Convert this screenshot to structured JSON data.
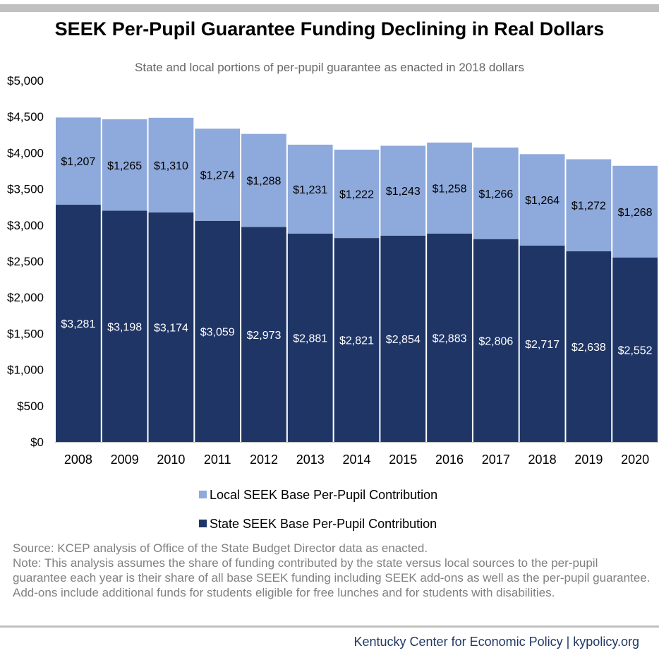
{
  "chart_data": {
    "type": "bar",
    "stacked": true,
    "title": "SEEK Per-Pupil Guarantee Funding Declining in Real Dollars",
    "subtitle": "State and local portions of per-pupil guarantee as enacted in 2018 dollars",
    "categories": [
      "2008",
      "2009",
      "2010",
      "2011",
      "2012",
      "2013",
      "2014",
      "2015",
      "2016",
      "2017",
      "2018",
      "2019",
      "2020"
    ],
    "series": [
      {
        "name": "State SEEK Base Per-Pupil Contribution",
        "color": "#1f3566",
        "values": [
          3281,
          3198,
          3174,
          3059,
          2973,
          2881,
          2821,
          2854,
          2883,
          2806,
          2717,
          2638,
          2552
        ],
        "labels": [
          "$3,281",
          "$3,198",
          "$3,174",
          "$3,059",
          "$2,973",
          "$2,881",
          "$2,821",
          "$2,854",
          "$2,883",
          "$2,806",
          "$2,717",
          "$2,638",
          "$2,552"
        ]
      },
      {
        "name": "Local SEEK Base Per-Pupil Contribution",
        "color": "#8ea9db",
        "values": [
          1207,
          1265,
          1310,
          1274,
          1288,
          1231,
          1222,
          1243,
          1258,
          1266,
          1264,
          1272,
          1268
        ],
        "labels": [
          "$1,207",
          "$1,265",
          "$1,310",
          "$1,274",
          "$1,288",
          "$1,231",
          "$1,222",
          "$1,243",
          "$1,258",
          "$1,266",
          "$1,264",
          "$1,272",
          "$1,268"
        ]
      }
    ],
    "ylim": [
      0,
      5000
    ],
    "yticks": [
      0,
      500,
      1000,
      1500,
      2000,
      2500,
      3000,
      3500,
      4000,
      4500,
      5000
    ],
    "ytick_labels": [
      "$0",
      "$500",
      "$1,000",
      "$1,500",
      "$2,000",
      "$2,500",
      "$3,000",
      "$3,500",
      "$4,000",
      "$4,500",
      "$5,000"
    ],
    "grid": false,
    "legend_position": "bottom"
  },
  "notes": {
    "source": "Source: KCEP analysis of Office of the State Budget Director data as enacted.",
    "note": "Note: This analysis assumes the share of funding contributed by the state versus local sources to the per-pupil guarantee each year is their share of all base SEEK funding including SEEK add-ons as well as the per-pupil guarantee. Add-ons include additional funds for students eligible for free lunches and for students with disabilities."
  },
  "footer": "Kentucky Center for Economic Policy | kypolicy.org"
}
